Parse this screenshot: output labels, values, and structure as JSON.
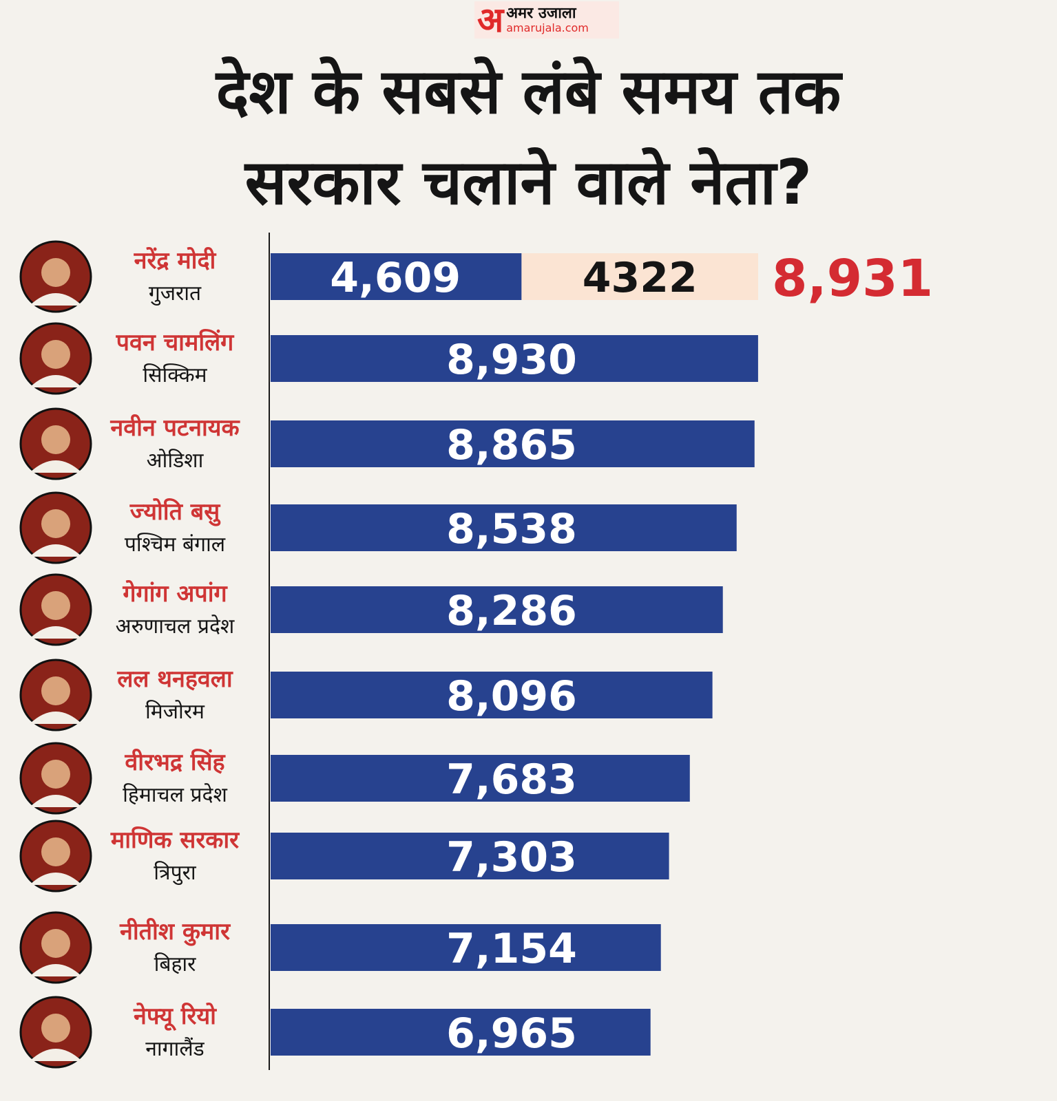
{
  "brand": {
    "mark": "अ",
    "name_hi": "अमर उजाला",
    "site": "amarujala.com"
  },
  "title_lines": [
    "देश के सबसे लंबे समय तक",
    "सरकार चलाने वाले नेता?"
  ],
  "colors": {
    "bar": "#27428f",
    "bar_extra": "#fbe4d3",
    "name": "#cf3535",
    "total": "#d42b32",
    "text": "#151515",
    "bg": "#f4f2ed"
  },
  "chart_data": {
    "type": "bar",
    "orientation": "horizontal",
    "categories": [
      "नरेंद्र मोदी",
      "पवन चामलिंग",
      "नवीन पटनायक",
      "ज्योति बसु",
      "गेगांग अपांग",
      "लल थनहवला",
      "वीरभद्र सिंह",
      "माणिक सरकार",
      "नीतीश कुमार",
      "नेफ्यू रियो"
    ],
    "states": [
      "गुजरात",
      "सिक्किम",
      "ओडिशा",
      "पश्चिम बंगाल",
      "अरुणाचल प्रदेश",
      "मिजोरम",
      "हिमाचल प्रदेश",
      "त्रिपुरा",
      "बिहार",
      "नागालैंड"
    ],
    "values": [
      8931,
      8930,
      8865,
      8538,
      8286,
      8096,
      7683,
      7303,
      7154,
      6965
    ],
    "labels": [
      "8,931",
      "8,930",
      "8,865",
      "8,538",
      "8,286",
      "8,096",
      "7,683",
      "7,303",
      "7,154",
      "6,965"
    ],
    "stacked_first": {
      "segments": [
        4609,
        4322
      ],
      "segment_labels": [
        "4,609",
        "4322"
      ],
      "total_label": "8,931"
    }
  }
}
